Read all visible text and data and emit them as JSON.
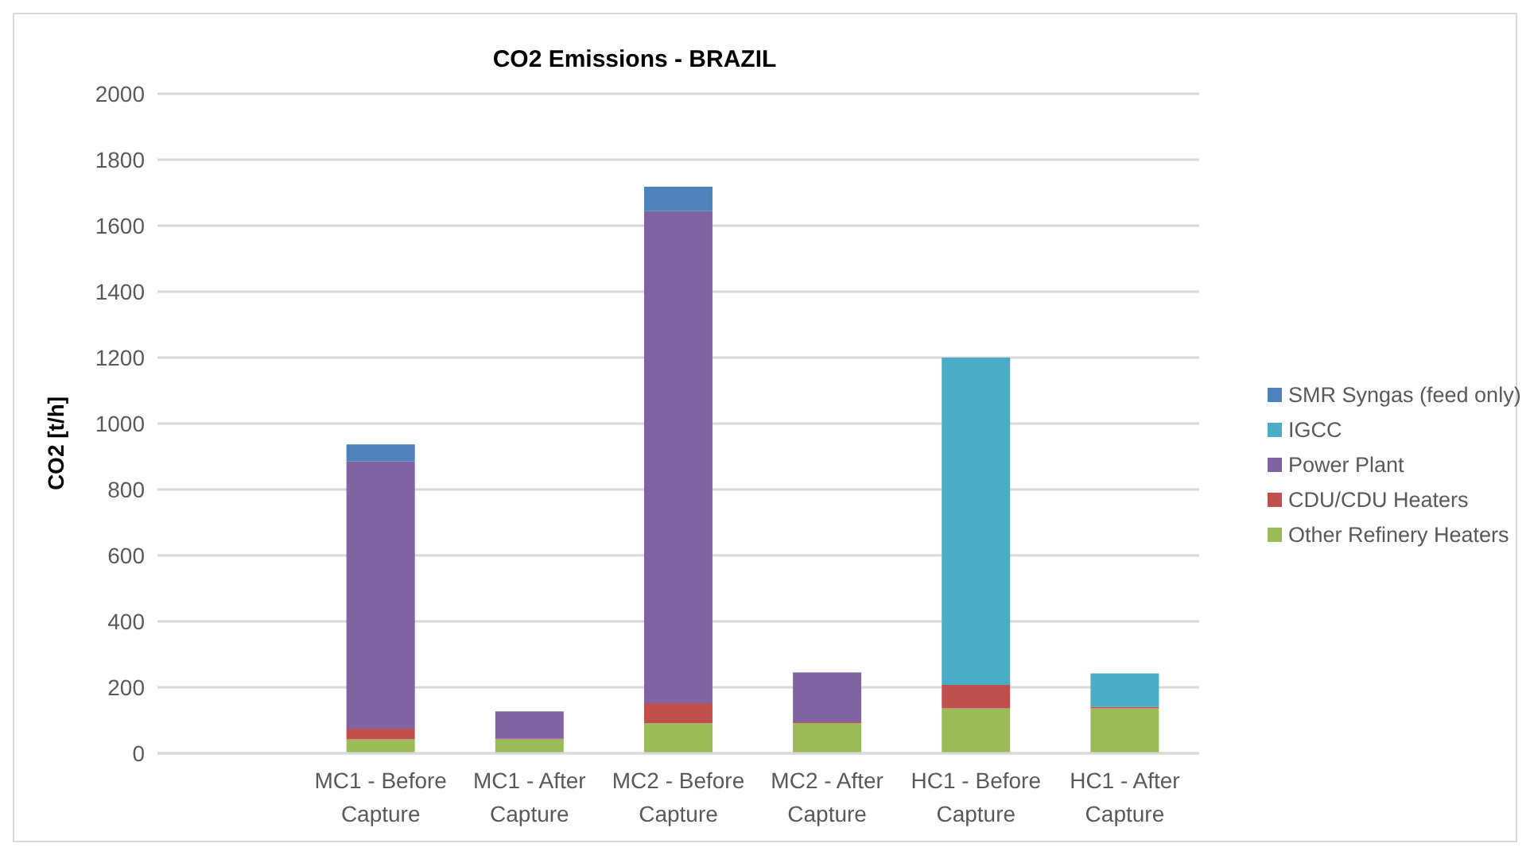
{
  "chart_data": {
    "type": "bar",
    "title": "CO2 Emissions - BRAZIL",
    "ylabel": "CO2 [t/h]",
    "categories": [
      null,
      "MC1 - Before Capture",
      "MC1 - After Capture",
      "MC2 - Before Capture",
      "MC2 - After Capture",
      "HC1 - Before Capture",
      "HC1 - After Capture"
    ],
    "stacked": true,
    "series": [
      {
        "name": "Other Refinery Heaters",
        "color": "#9bbb59",
        "values": [
          null,
          42,
          42,
          91,
          91,
          136,
          136
        ]
      },
      {
        "name": "CDU/CDU Heaters",
        "color": "#c0504d",
        "values": [
          null,
          33,
          2,
          61,
          3,
          71,
          5
        ]
      },
      {
        "name": "Power Plant",
        "color": "#8064a2",
        "values": [
          null,
          810,
          83,
          1492,
          151,
          null,
          null
        ]
      },
      {
        "name": "IGCC",
        "color": "#4bacc6",
        "values": [
          null,
          null,
          null,
          null,
          null,
          993,
          101
        ]
      },
      {
        "name": "SMR Syngas (feed only)",
        "color": "#4f81bd",
        "values": [
          null,
          52,
          null,
          74,
          null,
          null,
          null
        ]
      }
    ],
    "ylim": [
      0,
      2000
    ],
    "yticks": [
      0,
      200,
      400,
      600,
      800,
      1000,
      1200,
      1400,
      1600,
      1800,
      2000
    ],
    "grid": "y",
    "legend": "right"
  }
}
